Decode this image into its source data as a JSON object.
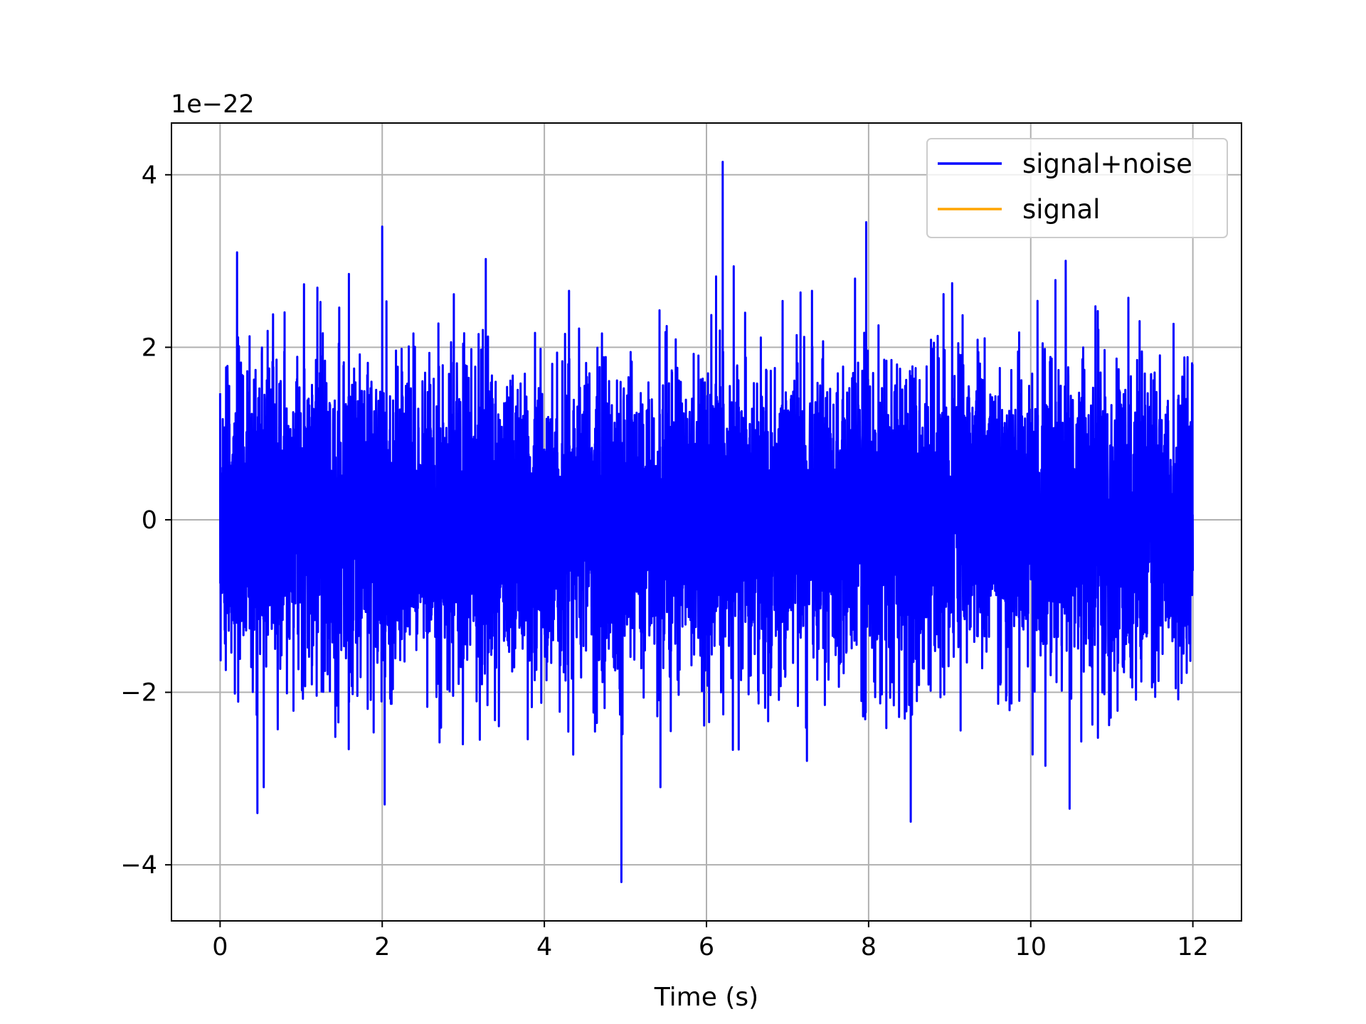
{
  "chart_data": {
    "type": "line",
    "title": "",
    "xlabel": "Time (s)",
    "ylabel": "",
    "y_offset_text": "1e−22",
    "xlim": [
      -0.6,
      12.6
    ],
    "ylim": [
      -4.65,
      4.6
    ],
    "x_ticks": [
      0,
      2,
      4,
      6,
      8,
      10,
      12
    ],
    "x_tick_labels": [
      "0",
      "2",
      "4",
      "6",
      "8",
      "10",
      "12"
    ],
    "y_ticks": [
      -4,
      -2,
      0,
      2,
      4
    ],
    "y_tick_labels": [
      "−4",
      "−2",
      "0",
      "2",
      "4"
    ],
    "grid": true,
    "legend_position": "top-right",
    "series": [
      {
        "name": "signal+noise",
        "color": "#0000ff",
        "x_start": 0,
        "x_end": 12,
        "envelope_typical": [
          -1.8,
          1.8
        ],
        "extremes": [
          {
            "x": 0.46,
            "y": -3.4
          },
          {
            "x": 2.0,
            "y": 3.4
          },
          {
            "x": 2.03,
            "y": -3.3
          },
          {
            "x": 4.95,
            "y": -4.2
          },
          {
            "x": 6.2,
            "y": 4.15
          },
          {
            "x": 7.97,
            "y": 3.45
          },
          {
            "x": 8.52,
            "y": -3.5
          },
          {
            "x": 10.48,
            "y": -3.35
          }
        ]
      },
      {
        "name": "signal",
        "color": "#ffa500",
        "x_start": 0,
        "x_end": 12,
        "y_constant": 0
      }
    ]
  }
}
